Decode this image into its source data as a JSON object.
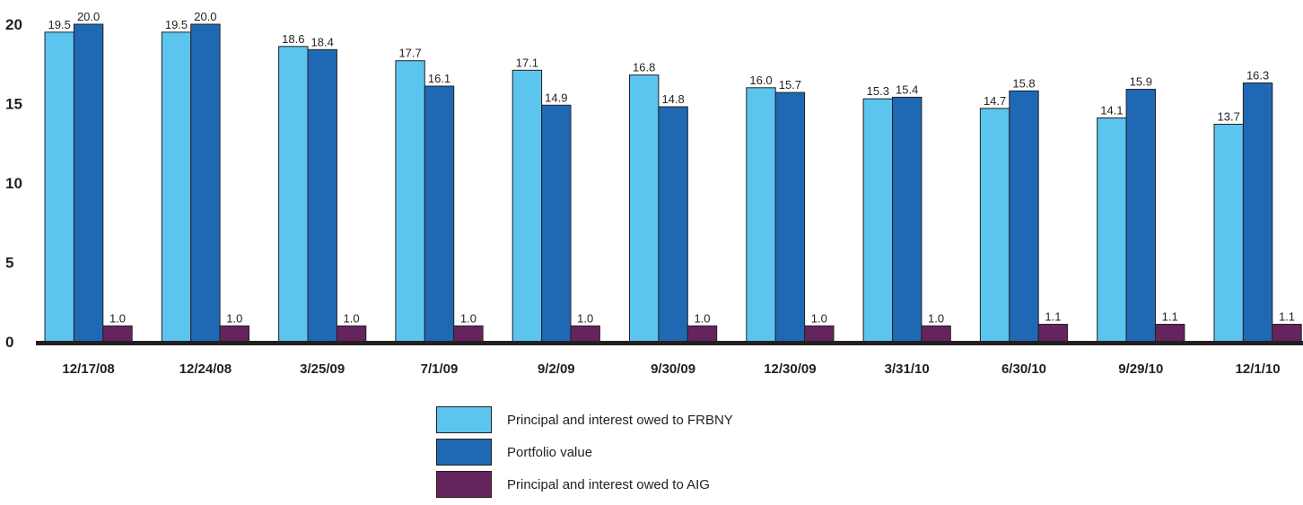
{
  "chart_data": {
    "type": "bar",
    "categories": [
      "12/17/08",
      "12/24/08",
      "3/25/09",
      "7/1/09",
      "9/2/09",
      "9/30/09",
      "12/30/09",
      "3/31/10",
      "6/30/10",
      "9/29/10",
      "12/1/10"
    ],
    "series": [
      {
        "name": "Principal and interest owed to FRBNY",
        "color": "#5bc5ef",
        "values": [
          19.5,
          19.5,
          18.6,
          17.7,
          17.1,
          16.8,
          16.0,
          15.3,
          14.7,
          14.1,
          13.7
        ],
        "labels": [
          "19.5",
          "19.5",
          "18.6",
          "17.7",
          "17.1",
          "16.8",
          "16.0",
          "15.3",
          "14.7",
          "14.1",
          "13.7"
        ]
      },
      {
        "name": "Portfolio value",
        "color": "#1f69b4",
        "values": [
          20.0,
          20.0,
          18.4,
          16.1,
          14.9,
          14.8,
          15.7,
          15.4,
          15.8,
          15.9,
          16.3
        ],
        "labels": [
          "20.0",
          "20.0",
          "18.4",
          "16.1",
          "14.9",
          "14.8",
          "15.7",
          "15.4",
          "15.8",
          "15.9",
          "16.3"
        ]
      },
      {
        "name": "Principal and interest owed to AIG",
        "color": "#66245e",
        "values": [
          1.0,
          1.0,
          1.0,
          1.0,
          1.0,
          1.0,
          1.0,
          1.0,
          1.1,
          1.1,
          1.1
        ],
        "labels": [
          "1.0",
          "1.0",
          "1.0",
          "1.0",
          "1.0",
          "1.0",
          "1.0",
          "1.0",
          "1.1",
          "1.1",
          "1.1"
        ]
      }
    ],
    "yticks": [
      "0",
      "5",
      "10",
      "15",
      "20"
    ],
    "ylim": [
      0,
      20.5
    ],
    "grid": false,
    "legend_position": "bottom-center",
    "axis_color": "#231f20"
  }
}
